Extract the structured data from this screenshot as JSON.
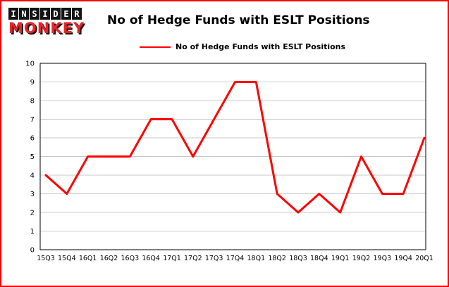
{
  "logo": {
    "line1": "INSIDER",
    "line2": "MONKEY"
  },
  "title": "No of Hedge Funds with ESLT Positions",
  "legend": {
    "label": "No of Hedge Funds with ESLT Positions",
    "color": "#ff0000"
  },
  "chart_data": {
    "type": "line",
    "title": "No of Hedge Funds with ESLT Positions",
    "categories": [
      "15Q3",
      "15Q4",
      "16Q1",
      "16Q2",
      "16Q3",
      "16Q4",
      "17Q1",
      "17Q2",
      "17Q3",
      "17Q4",
      "18Q1",
      "18Q2",
      "18Q3",
      "18Q4",
      "19Q1",
      "19Q2",
      "19Q3",
      "19Q4",
      "20Q1"
    ],
    "values": [
      4,
      3,
      5,
      5,
      5,
      7,
      7,
      5,
      7,
      9,
      9,
      3,
      2,
      3,
      2,
      5,
      3,
      3,
      6
    ],
    "series_name": "No of Hedge Funds with ESLT Positions",
    "xlabel": "",
    "ylabel": "",
    "ylim": [
      0,
      10
    ],
    "yticks": [
      0,
      1,
      2,
      3,
      4,
      5,
      6,
      7,
      8,
      9,
      10
    ],
    "line_color": "#ff0000",
    "grid": true,
    "legend_position": "top"
  },
  "colors": {
    "accent": "#ff0000",
    "frame_border": "#ff0000",
    "grid": "#c8c8c8",
    "axis": "#000000",
    "logo_black": "#141414",
    "logo_red": "#e8262a"
  }
}
